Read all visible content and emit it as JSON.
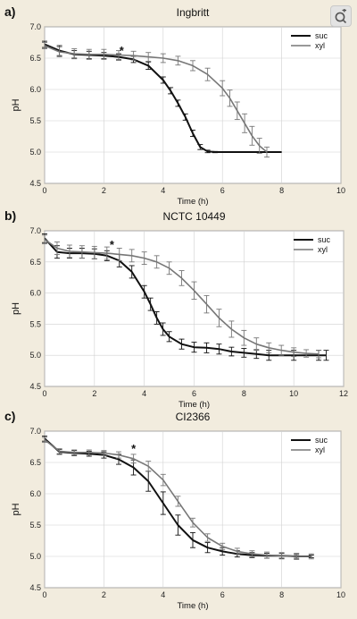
{
  "colors": {
    "suc": "#111111",
    "xyl": "#777777",
    "background": "#f2ecde",
    "grid": "#d0d0d0",
    "axis": "#666666"
  },
  "zoom_button": {
    "icon": "zoom-icon"
  },
  "chart_data": [
    {
      "type": "line",
      "panel_label": "a)",
      "title": "Ingbritt",
      "xlabel": "Time (h)",
      "ylabel": "pH",
      "xlim": [
        0,
        10
      ],
      "ylim": [
        4.5,
        7.0
      ],
      "xticks": [
        "0",
        "2",
        "4",
        "6",
        "8",
        "10"
      ],
      "yticks": [
        "4.5",
        "5.0",
        "5.5",
        "6.0",
        "6.5",
        "7.0"
      ],
      "grid": true,
      "legend_position": "top-right",
      "annotation": {
        "text": "*",
        "x": 2.6,
        "y": 6.56
      },
      "series": [
        {
          "name": "suc",
          "x": [
            0,
            0.5,
            1,
            1.5,
            2,
            2.5,
            3,
            3.5,
            4,
            4.25,
            4.5,
            4.75,
            5,
            5.25,
            5.5,
            5.75,
            6,
            6.5,
            7,
            7.5,
            8
          ],
          "y": [
            6.72,
            6.62,
            6.56,
            6.55,
            6.54,
            6.52,
            6.48,
            6.38,
            6.15,
            5.98,
            5.78,
            5.56,
            5.3,
            5.08,
            5.01,
            5.0,
            5.0,
            5.0,
            5.0,
            5.0,
            5.0
          ],
          "err": [
            0.05,
            0.08,
            0.06,
            0.06,
            0.05,
            0.05,
            0.05,
            0.06,
            0.05,
            0.05,
            0.05,
            0.05,
            0.05,
            0.04,
            0.02,
            0.01,
            0.0,
            0.0,
            0.0,
            0.0,
            0.0
          ]
        },
        {
          "name": "xyl",
          "x": [
            0,
            0.5,
            1,
            1.5,
            2,
            2.5,
            3,
            3.5,
            4,
            4.5,
            5,
            5.5,
            6,
            6.25,
            6.5,
            6.75,
            7,
            7.25,
            7.5
          ],
          "y": [
            6.7,
            6.6,
            6.57,
            6.56,
            6.56,
            6.55,
            6.54,
            6.52,
            6.5,
            6.46,
            6.38,
            6.24,
            6.02,
            5.86,
            5.66,
            5.46,
            5.26,
            5.1,
            5.0
          ],
          "err": [
            0.05,
            0.08,
            0.08,
            0.08,
            0.08,
            0.07,
            0.07,
            0.07,
            0.07,
            0.07,
            0.08,
            0.1,
            0.12,
            0.13,
            0.14,
            0.15,
            0.15,
            0.12,
            0.08
          ]
        }
      ]
    },
    {
      "type": "line",
      "panel_label": "b)",
      "title": "NCTC 10449",
      "xlabel": "Time (h)",
      "ylabel": "pH",
      "xlim": [
        0,
        12
      ],
      "ylim": [
        4.5,
        7.0
      ],
      "xticks": [
        "0",
        "2",
        "4",
        "6",
        "8",
        "10",
        "12"
      ],
      "yticks": [
        "4.5",
        "5.0",
        "5.5",
        "6.0",
        "6.5",
        "7.0"
      ],
      "grid": true,
      "legend_position": "top-right",
      "annotation": {
        "text": "*",
        "x": 2.7,
        "y": 6.71
      },
      "series": [
        {
          "name": "suc",
          "x": [
            0,
            0.5,
            1,
            1.5,
            2,
            2.5,
            3,
            3.5,
            4,
            4.25,
            4.5,
            4.75,
            5,
            5.5,
            6,
            6.5,
            7,
            7.5,
            8,
            8.5,
            9,
            10,
            11,
            11.3
          ],
          "y": [
            6.88,
            6.66,
            6.64,
            6.64,
            6.63,
            6.6,
            6.52,
            6.34,
            6.02,
            5.82,
            5.6,
            5.42,
            5.3,
            5.18,
            5.13,
            5.12,
            5.1,
            5.06,
            5.04,
            5.02,
            5.0,
            5.0,
            5.0,
            5.0
          ],
          "err": [
            0.07,
            0.1,
            0.08,
            0.08,
            0.08,
            0.08,
            0.1,
            0.1,
            0.1,
            0.1,
            0.1,
            0.1,
            0.08,
            0.08,
            0.08,
            0.08,
            0.08,
            0.07,
            0.07,
            0.07,
            0.08,
            0.08,
            0.08,
            0.08
          ]
        },
        {
          "name": "xyl",
          "x": [
            0,
            0.5,
            1,
            1.5,
            2,
            2.5,
            3,
            3.5,
            4,
            4.5,
            5,
            5.5,
            6,
            6.5,
            7,
            7.5,
            8,
            8.5,
            9,
            9.5,
            10,
            10.5,
            11
          ],
          "y": [
            6.86,
            6.72,
            6.67,
            6.66,
            6.65,
            6.64,
            6.62,
            6.6,
            6.56,
            6.5,
            6.4,
            6.24,
            6.04,
            5.82,
            5.6,
            5.42,
            5.28,
            5.18,
            5.12,
            5.08,
            5.05,
            5.03,
            5.02
          ],
          "err": [
            0.07,
            0.1,
            0.1,
            0.1,
            0.1,
            0.1,
            0.1,
            0.1,
            0.1,
            0.1,
            0.1,
            0.12,
            0.14,
            0.14,
            0.14,
            0.13,
            0.12,
            0.1,
            0.08,
            0.08,
            0.07,
            0.06,
            0.06
          ]
        }
      ]
    },
    {
      "type": "line",
      "panel_label": "c)",
      "title": "CI2366",
      "xlabel": "Time (h)",
      "ylabel": "pH",
      "xlim": [
        0,
        10
      ],
      "ylim": [
        4.5,
        7.0
      ],
      "xticks": [
        "0",
        "2",
        "4",
        "6",
        "8",
        "10"
      ],
      "yticks": [
        "4.5",
        "5.0",
        "5.5",
        "6.0",
        "6.5",
        "7.0"
      ],
      "grid": true,
      "legend_position": "top-right",
      "annotation": {
        "text": "*",
        "x": 3.0,
        "y": 6.66
      },
      "series": [
        {
          "name": "suc",
          "x": [
            0,
            0.5,
            1,
            1.5,
            2,
            2.5,
            3,
            3.5,
            4,
            4.5,
            5,
            5.5,
            6,
            6.5,
            7,
            7.5,
            8,
            8.5,
            9
          ],
          "y": [
            6.88,
            6.67,
            6.65,
            6.64,
            6.62,
            6.55,
            6.42,
            6.2,
            5.85,
            5.5,
            5.26,
            5.14,
            5.08,
            5.04,
            5.02,
            5.01,
            5.01,
            5.0,
            5.0
          ],
          "err": [
            0.04,
            0.04,
            0.04,
            0.04,
            0.05,
            0.08,
            0.12,
            0.16,
            0.18,
            0.16,
            0.12,
            0.08,
            0.06,
            0.05,
            0.04,
            0.04,
            0.04,
            0.03,
            0.02
          ]
        },
        {
          "name": "xyl",
          "x": [
            0,
            0.5,
            1,
            1.5,
            2,
            2.5,
            3,
            3.5,
            4,
            4.5,
            5,
            5.5,
            6,
            6.5,
            7,
            7.5,
            8,
            8.5,
            9
          ],
          "y": [
            6.86,
            6.68,
            6.66,
            6.66,
            6.65,
            6.62,
            6.56,
            6.44,
            6.22,
            5.88,
            5.54,
            5.3,
            5.16,
            5.08,
            5.04,
            5.02,
            5.01,
            5.0,
            5.0
          ],
          "err": [
            0.04,
            0.04,
            0.04,
            0.04,
            0.04,
            0.05,
            0.07,
            0.08,
            0.09,
            0.08,
            0.07,
            0.06,
            0.05,
            0.05,
            0.05,
            0.05,
            0.05,
            0.05,
            0.04
          ]
        }
      ]
    }
  ]
}
